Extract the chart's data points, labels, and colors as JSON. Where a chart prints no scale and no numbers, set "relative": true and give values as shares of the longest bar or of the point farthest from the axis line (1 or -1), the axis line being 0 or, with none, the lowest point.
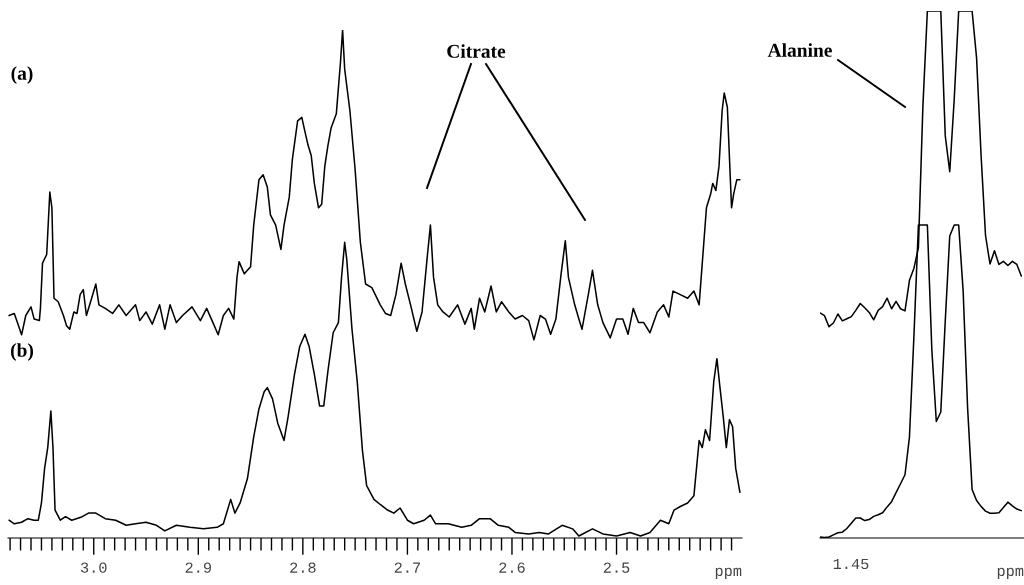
{
  "chart_data": [
    {
      "type": "line",
      "relative": true,
      "xlabel": "ppm",
      "xlim": [
        3.082,
        2.38
      ],
      "xticks": [
        {
          "value": 3.08,
          "label": null
        },
        {
          "value": 3.07,
          "label": null
        },
        {
          "value": 3.06,
          "label": null
        },
        {
          "value": 3.05,
          "label": null
        },
        {
          "value": 3.04,
          "label": null
        },
        {
          "value": 3.03,
          "label": null
        },
        {
          "value": 3.02,
          "label": null
        },
        {
          "value": 3.01,
          "label": null
        },
        {
          "value": 3.0,
          "label": "3.0"
        },
        {
          "value": 2.99,
          "label": null
        },
        {
          "value": 2.98,
          "label": null
        },
        {
          "value": 2.97,
          "label": null
        },
        {
          "value": 2.96,
          "label": null
        },
        {
          "value": 2.95,
          "label": null
        },
        {
          "value": 2.94,
          "label": null
        },
        {
          "value": 2.93,
          "label": null
        },
        {
          "value": 2.92,
          "label": null
        },
        {
          "value": 2.91,
          "label": null
        },
        {
          "value": 2.9,
          "label": "2.9"
        },
        {
          "value": 2.89,
          "label": null
        },
        {
          "value": 2.88,
          "label": null
        },
        {
          "value": 2.87,
          "label": null
        },
        {
          "value": 2.86,
          "label": null
        },
        {
          "value": 2.85,
          "label": null
        },
        {
          "value": 2.84,
          "label": null
        },
        {
          "value": 2.83,
          "label": null
        },
        {
          "value": 2.82,
          "label": null
        },
        {
          "value": 2.81,
          "label": null
        },
        {
          "value": 2.8,
          "label": "2.8"
        },
        {
          "value": 2.79,
          "label": null
        },
        {
          "value": 2.78,
          "label": null
        },
        {
          "value": 2.77,
          "label": null
        },
        {
          "value": 2.76,
          "label": null
        },
        {
          "value": 2.75,
          "label": null
        },
        {
          "value": 2.74,
          "label": null
        },
        {
          "value": 2.73,
          "label": null
        },
        {
          "value": 2.72,
          "label": null
        },
        {
          "value": 2.71,
          "label": null
        },
        {
          "value": 2.7,
          "label": "2.7"
        },
        {
          "value": 2.69,
          "label": null
        },
        {
          "value": 2.68,
          "label": null
        },
        {
          "value": 2.67,
          "label": null
        },
        {
          "value": 2.66,
          "label": null
        },
        {
          "value": 2.65,
          "label": null
        },
        {
          "value": 2.64,
          "label": null
        },
        {
          "value": 2.63,
          "label": null
        },
        {
          "value": 2.62,
          "label": null
        },
        {
          "value": 2.61,
          "label": null
        },
        {
          "value": 2.6,
          "label": "2.6"
        },
        {
          "value": 2.59,
          "label": null
        },
        {
          "value": 2.58,
          "label": null
        },
        {
          "value": 2.57,
          "label": null
        },
        {
          "value": 2.56,
          "label": null
        },
        {
          "value": 2.55,
          "label": null
        },
        {
          "value": 2.54,
          "label": null
        },
        {
          "value": 2.53,
          "label": null
        },
        {
          "value": 2.52,
          "label": null
        },
        {
          "value": 2.51,
          "label": null
        },
        {
          "value": 2.5,
          "label": "2.5"
        },
        {
          "value": 2.49,
          "label": null
        },
        {
          "value": 2.48,
          "label": null
        },
        {
          "value": 2.47,
          "label": null
        },
        {
          "value": 2.46,
          "label": null
        },
        {
          "value": 2.45,
          "label": null
        },
        {
          "value": 2.44,
          "label": null
        },
        {
          "value": 2.43,
          "label": null
        },
        {
          "value": 2.42,
          "label": null
        },
        {
          "value": 2.41,
          "label": null
        },
        {
          "value": 2.4,
          "label": null
        },
        {
          "value": 2.39,
          "label": null
        }
      ],
      "annotations": [
        "(a)",
        "(b)",
        "Citrate"
      ],
      "series": [
        {
          "color": "#000000",
          "x": [
            3.081,
            3.076,
            3.073,
            3.069,
            3.065,
            3.06,
            3.057,
            3.052,
            3.051,
            3.049,
            3.045,
            3.042,
            3.04,
            3.038,
            3.034,
            3.029,
            3.026,
            3.023,
            3.019,
            3.016,
            3.013,
            3.01,
            3.007,
            3.002,
            2.998,
            2.995,
            2.989,
            2.982,
            2.976,
            2.969,
            2.96,
            2.956,
            2.95,
            2.944,
            2.937,
            2.932,
            2.927,
            2.921,
            2.915,
            2.906,
            2.898,
            2.892,
            2.886,
            2.881,
            2.876,
            2.871,
            2.866,
            2.863,
            2.861,
            2.856,
            2.85,
            2.847,
            2.842,
            2.838,
            2.834,
            2.831,
            2.826,
            2.821,
            2.818,
            2.813,
            2.81,
            2.805,
            2.801,
            2.798,
            2.795,
            2.792,
            2.789,
            2.785,
            2.782,
            2.779,
            2.776,
            2.773,
            2.768,
            2.764,
            2.762,
            2.76,
            2.755,
            2.75,
            2.745,
            2.74,
            2.734,
            2.726,
            2.721,
            2.716,
            2.711,
            2.706,
            2.702,
            2.697,
            2.691,
            2.686,
            2.681,
            2.678,
            2.675,
            2.671,
            2.666,
            2.66,
            2.652,
            2.645,
            2.639,
            2.636,
            2.631,
            2.626,
            2.62,
            2.615,
            2.61,
            2.603,
            2.597,
            2.59,
            2.584,
            2.579,
            2.573,
            2.568,
            2.563,
            2.558,
            2.553,
            2.549,
            2.546,
            2.54,
            2.536,
            2.533,
            2.527,
            2.523,
            2.518,
            2.513,
            2.506,
            2.5,
            2.494,
            2.489,
            2.484,
            2.479,
            2.474,
            2.468,
            2.461,
            2.455,
            2.45,
            2.446,
            2.439,
            2.432,
            2.426,
            2.421,
            2.418,
            2.414,
            2.41,
            2.408,
            2.405,
            2.402,
            2.399,
            2.397,
            2.394,
            2.39,
            2.388,
            2.385,
            2.382
          ],
          "values": [
            0.438,
            0.442,
            0.424,
            0.4,
            0.438,
            0.455,
            0.431,
            0.428,
            0.452,
            0.541,
            0.558,
            0.681,
            0.65,
            0.472,
            0.465,
            0.438,
            0.418,
            0.411,
            0.445,
            0.442,
            0.479,
            0.489,
            0.438,
            0.472,
            0.5,
            0.459,
            0.452,
            0.442,
            0.459,
            0.438,
            0.459,
            0.428,
            0.445,
            0.421,
            0.459,
            0.411,
            0.459,
            0.424,
            0.438,
            0.455,
            0.428,
            0.452,
            0.424,
            0.4,
            0.438,
            0.452,
            0.431,
            0.513,
            0.544,
            0.52,
            0.534,
            0.616,
            0.705,
            0.715,
            0.691,
            0.636,
            0.616,
            0.568,
            0.616,
            0.671,
            0.746,
            0.821,
            0.828,
            0.8,
            0.773,
            0.753,
            0.698,
            0.65,
            0.657,
            0.732,
            0.773,
            0.807,
            0.835,
            0.937,
            1.0,
            0.923,
            0.841,
            0.725,
            0.582,
            0.5,
            0.493,
            0.459,
            0.442,
            0.438,
            0.479,
            0.541,
            0.5,
            0.459,
            0.407,
            0.445,
            0.554,
            0.616,
            0.513,
            0.459,
            0.445,
            0.435,
            0.459,
            0.421,
            0.452,
            0.411,
            0.472,
            0.445,
            0.496,
            0.445,
            0.465,
            0.445,
            0.431,
            0.438,
            0.428,
            0.39,
            0.438,
            0.431,
            0.401,
            0.431,
            0.52,
            0.585,
            0.513,
            0.459,
            0.431,
            0.411,
            0.479,
            0.527,
            0.459,
            0.424,
            0.394,
            0.431,
            0.431,
            0.401,
            0.452,
            0.424,
            0.424,
            0.404,
            0.445,
            0.459,
            0.435,
            0.486,
            0.479,
            0.472,
            0.486,
            0.459,
            0.541,
            0.65,
            0.677,
            0.698,
            0.684,
            0.732,
            0.841,
            0.876,
            0.848,
            0.65,
            0.677,
            0.705,
            0.705
          ]
        },
        {
          "color": "#000000",
          "x": [
            3.081,
            3.076,
            3.069,
            3.063,
            3.057,
            3.053,
            3.05,
            3.047,
            3.044,
            3.041,
            3.039,
            3.037,
            3.032,
            3.027,
            3.021,
            3.011,
            3.005,
            2.998,
            2.989,
            2.979,
            2.969,
            2.96,
            2.95,
            2.94,
            2.932,
            2.921,
            2.908,
            2.895,
            2.882,
            2.876,
            2.869,
            2.865,
            2.86,
            2.853,
            2.847,
            2.842,
            2.837,
            2.834,
            2.829,
            2.824,
            2.818,
            2.814,
            2.808,
            2.803,
            2.798,
            2.794,
            2.789,
            2.784,
            2.78,
            2.776,
            2.771,
            2.766,
            2.763,
            2.76,
            2.758,
            2.753,
            2.748,
            2.743,
            2.739,
            2.732,
            2.726,
            2.719,
            2.713,
            2.707,
            2.7,
            2.694,
            2.684,
            2.678,
            2.673,
            2.661,
            2.648,
            2.639,
            2.631,
            2.621,
            2.613,
            2.603,
            2.597,
            2.584,
            2.574,
            2.565,
            2.552,
            2.542,
            2.536,
            2.523,
            2.513,
            2.5,
            2.487,
            2.477,
            2.468,
            2.458,
            2.45,
            2.445,
            2.439,
            2.432,
            2.426,
            2.421,
            2.418,
            2.415,
            2.411,
            2.407,
            2.404,
            2.401,
            2.398,
            2.395,
            2.392,
            2.389,
            2.386,
            2.382
          ],
          "values": [
            0.035,
            0.028,
            0.031,
            0.038,
            0.035,
            0.035,
            0.069,
            0.137,
            0.178,
            0.25,
            0.178,
            0.055,
            0.035,
            0.042,
            0.035,
            0.042,
            0.049,
            0.049,
            0.038,
            0.035,
            0.025,
            0.028,
            0.031,
            0.025,
            0.014,
            0.025,
            0.021,
            0.018,
            0.021,
            0.028,
            0.076,
            0.049,
            0.069,
            0.117,
            0.199,
            0.254,
            0.288,
            0.296,
            0.274,
            0.226,
            0.192,
            0.24,
            0.322,
            0.377,
            0.401,
            0.377,
            0.322,
            0.26,
            0.26,
            0.329,
            0.404,
            0.424,
            0.513,
            0.582,
            0.548,
            0.411,
            0.308,
            0.172,
            0.103,
            0.076,
            0.066,
            0.055,
            0.049,
            0.059,
            0.035,
            0.028,
            0.035,
            0.045,
            0.028,
            0.028,
            0.021,
            0.025,
            0.038,
            0.038,
            0.025,
            0.021,
            0.011,
            0.008,
            0.011,
            0.008,
            0.025,
            0.018,
            0.004,
            0.018,
            0.008,
            0.004,
            0.011,
            0.004,
            0.011,
            0.035,
            0.028,
            0.055,
            0.062,
            0.069,
            0.083,
            0.192,
            0.178,
            0.213,
            0.192,
            0.308,
            0.353,
            0.295,
            0.24,
            0.178,
            0.233,
            0.219,
            0.137,
            0.09
          ]
        }
      ]
    },
    {
      "type": "line",
      "relative": true,
      "xlabel": "ppm",
      "categories": [
        null,
        null,
        null,
        null,
        null,
        null,
        null,
        null,
        null,
        null,
        null,
        null,
        null,
        null,
        null,
        null,
        null,
        null,
        null,
        null,
        null,
        null,
        null,
        null,
        null,
        null,
        null,
        null,
        null,
        null,
        null,
        null,
        null,
        null,
        null,
        null,
        null,
        null,
        null,
        null,
        null,
        null,
        null,
        null,
        null,
        null
      ],
      "annotations": [
        "Alanine",
        "1.45"
      ],
      "series": [
        {
          "color": "#000000",
          "values": [
            0.427,
            0.422,
            0.401,
            0.408,
            0.425,
            0.412,
            0.416,
            0.42,
            0.432,
            0.445,
            0.437,
            0.428,
            0.414,
            0.432,
            0.439,
            0.455,
            0.435,
            0.449,
            0.435,
            0.431,
            0.489,
            0.512,
            0.551,
            0.819,
            1.0,
            1.0,
            1.0,
            1.0,
            0.763,
            0.695,
            0.832,
            1.0,
            1.0,
            1.0,
            1.0,
            0.911,
            0.727,
            0.574,
            0.52,
            0.545,
            0.519,
            0.525,
            0.517,
            0.525,
            0.519,
            0.497
          ]
        },
        {
          "color": "#000000",
          "values": [
            0.002,
            0.001,
            0.002,
            0.006,
            0.01,
            0.011,
            0.018,
            0.028,
            0.038,
            0.038,
            0.033,
            0.035,
            0.041,
            0.044,
            0.048,
            0.059,
            0.069,
            0.086,
            0.103,
            0.12,
            0.192,
            0.384,
            0.594,
            0.594,
            0.594,
            0.357,
            0.221,
            0.239,
            0.412,
            0.573,
            0.594,
            0.594,
            0.468,
            0.246,
            0.092,
            0.071,
            0.06,
            0.051,
            0.047,
            0.047,
            0.048,
            0.058,
            0.068,
            0.061,
            0.055,
            0.052
          ]
        }
      ]
    }
  ]
}
